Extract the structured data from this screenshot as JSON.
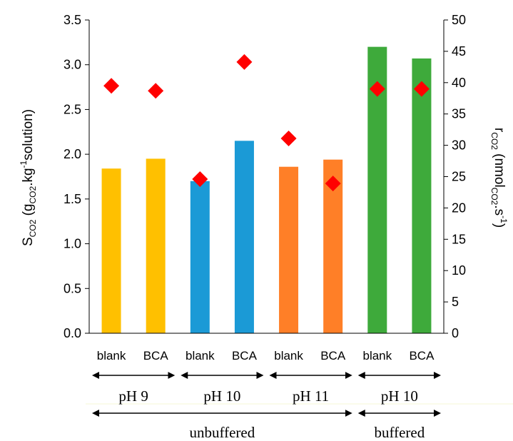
{
  "chart_data": {
    "type": "bar",
    "categories": [
      "blank",
      "BCA",
      "blank",
      "BCA",
      "blank",
      "BCA",
      "blank",
      "BCA"
    ],
    "bar_values": [
      1.84,
      1.95,
      1.7,
      2.15,
      1.86,
      1.94,
      3.2,
      3.07
    ],
    "bar_colors": [
      "#FFC000",
      "#FFC000",
      "#1B9AD6",
      "#1B9AD6",
      "#FF7F27",
      "#FF7F27",
      "#3EAA3B",
      "#3EAA3B"
    ],
    "diamond_values": [
      39.5,
      38.7,
      24.6,
      43.3,
      31.1,
      23.9,
      39.0,
      39.0
    ],
    "diamond_color": "#FF0000",
    "ylim_left": [
      0,
      3.5
    ],
    "yticks_left": [
      "0.0",
      "0.5",
      "1.0",
      "1.5",
      "2.0",
      "2.5",
      "3.0",
      "3.5"
    ],
    "ylim_right": [
      0,
      50
    ],
    "yticks_right": [
      "0",
      "5",
      "10",
      "15",
      "20",
      "25",
      "30",
      "35",
      "40",
      "45",
      "50"
    ],
    "ylabel_left": {
      "main": "S",
      "sub": "CO2",
      "rest": " (g",
      "sub2": "CO2",
      "rest2": ".kg",
      "sup": "-1",
      "rest3": "solution)"
    },
    "ylabel_right": {
      "main": "r",
      "sub": "CO2",
      "rest": " (nmol",
      "sub2": "CO2",
      "rest2": ".s",
      "sup": "-1",
      "rest3": ")"
    },
    "groups": [
      {
        "label": "pH 9",
        "from": 0,
        "to": 1
      },
      {
        "label": "pH 10",
        "from": 2,
        "to": 3
      },
      {
        "label": "pH 11",
        "from": 4,
        "to": 5
      },
      {
        "label": "pH 10",
        "from": 6,
        "to": 7
      }
    ],
    "supergroups": [
      {
        "label": "unbuffered",
        "from": 0,
        "to": 5
      },
      {
        "label": "buffered",
        "from": 6,
        "to": 7
      }
    ],
    "grid": false,
    "legend": "none"
  }
}
